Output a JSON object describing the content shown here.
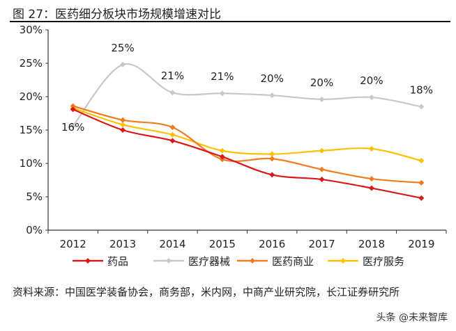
{
  "figure_title": "图 27：医药细分板块市场规模增速对比",
  "source": "资料来源：中国医学装备协会，商务部，米内网，中商产业研究院，长江证券研究所",
  "watermark": "头条 @未来智库",
  "chart_data": {
    "type": "line",
    "categories": [
      "2012",
      "2013",
      "2014",
      "2015",
      "2016",
      "2017",
      "2018",
      "2019"
    ],
    "ylim": [
      0,
      30
    ],
    "yticks": [
      "0%",
      "5%",
      "10%",
      "15%",
      "20%",
      "25%",
      "30%"
    ],
    "grid": false,
    "legend_position": "bottom",
    "series": [
      {
        "name": "药品",
        "color": "#d7191c",
        "values": [
          18.1,
          15.0,
          13.4,
          11.0,
          8.3,
          7.6,
          6.3,
          4.8
        ]
      },
      {
        "name": "医疗器械",
        "color": "#c8c8c8",
        "values": [
          15.6,
          24.8,
          20.6,
          20.5,
          20.2,
          19.6,
          19.9,
          18.5
        ],
        "labels": [
          "16%",
          "25%",
          "21%",
          "21%",
          "20%",
          "20%",
          "20%",
          "18%"
        ]
      },
      {
        "name": "医药商业",
        "color": "#f07c1e",
        "values": [
          18.6,
          16.5,
          15.4,
          10.6,
          10.7,
          9.1,
          7.7,
          7.1
        ]
      },
      {
        "name": "医疗服务",
        "color": "#ffc000",
        "values": [
          18.3,
          15.8,
          14.3,
          11.9,
          11.4,
          11.9,
          12.2,
          10.4
        ]
      }
    ]
  }
}
